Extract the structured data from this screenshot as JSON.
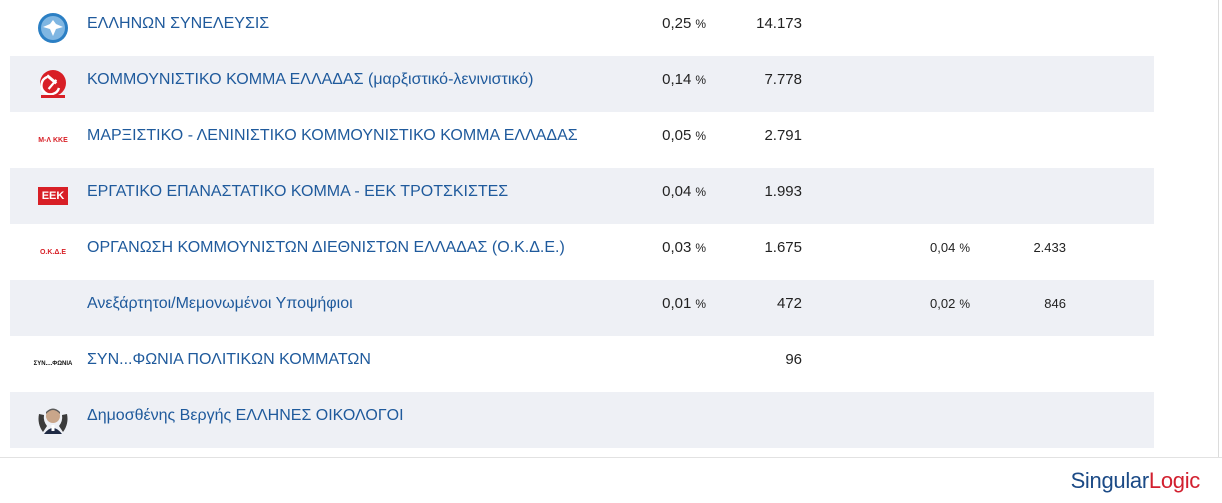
{
  "rows": [
    {
      "name": "ΕΛΛΗΝΩΝ ΣΥΝΕΛΕΥΣΙΣ",
      "pct": "0,25",
      "votes": "14.173",
      "logo": "eagle-emblem-icon"
    },
    {
      "name": "ΚΟΜΜΟΥΝΙΣΤΙΚΟ ΚΟΜΜΑ ΕΛΛΑΔΑΣ (μαρξιστικό-λενινιστικό)",
      "pct": "0,14",
      "votes": "7.778",
      "logo": "hammer-sickle-icon"
    },
    {
      "name": "ΜΑΡΞΙΣΤΙΚΟ - ΛΕΝΙΝΙΣΤΙΚΟ ΚΟΜΜΟΥΝΙΣΤΙΚΟ ΚΟΜΜΑ ΕΛΛΑΔΑΣ",
      "pct": "0,05",
      "votes": "2.791",
      "logo": "m-l-kke-logo"
    },
    {
      "name": "ΕΡΓΑΤΙΚΟ ΕΠΑΝΑΣΤΑΤΙΚΟ ΚΟΜΜΑ - ΕΕΚ ΤΡΟΤΣΚΙΣΤΕΣ",
      "pct": "0,04",
      "votes": "1.993",
      "logo": "eek-logo"
    },
    {
      "name": "ΟΡΓΑΝΩΣΗ ΚΟΜΜΟΥΝΙΣΤΩΝ ΔΙΕΘΝΙΣΤΩΝ ΕΛΛΑΔΑΣ (Ο.Κ.Δ.Ε.)",
      "pct": "0,03",
      "votes": "1.675",
      "pct2": "0,04",
      "votes2": "2.433",
      "logo": "okde-logo"
    },
    {
      "name": "Ανεξάρτητοι/Μεμονωμένοι Υποψήφιοι",
      "pct": "0,01",
      "votes": "472",
      "pct2": "0,02",
      "votes2": "846",
      "logo": ""
    },
    {
      "name": "ΣΥΝ...ΦΩΝΙΑ ΠΟΛΙΤΙΚΩΝ ΚΟΜΜΑΤΩΝ",
      "pct": "",
      "votes": "96",
      "logo": "synfonia-logo"
    },
    {
      "name": "Δημοσθένης Βεργής ΕΛΛΗΝΕΣ ΟΙΚΟΛΟΓΟΙ",
      "pct": "",
      "votes": "",
      "logo": "candidate-portrait-icon"
    }
  ],
  "labels": {
    "pct_unit": "%",
    "m_l_kke": "Μ-Λ ΚΚΕ",
    "eek": "ΕΕΚ",
    "okde": "Ο.Κ.Δ.Ε",
    "synfonia": "ΣΥΝ....ΦΩΝΙΑ"
  },
  "brand": {
    "part1": "Singular",
    "part2": "Logic"
  },
  "colors": {
    "link": "#1f5a9c",
    "row_shade": "#eef0f5",
    "brand_blue": "#1b4a86",
    "brand_red": "#d2202f"
  }
}
